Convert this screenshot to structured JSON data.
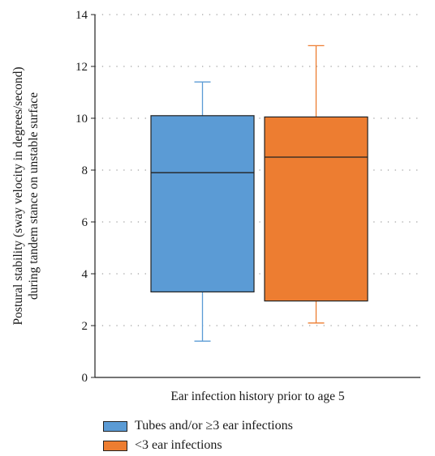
{
  "chart_data": {
    "type": "box",
    "ylabel_line1": "Postural stability (sway velocity in degrees/second)",
    "ylabel_line2": "during tandem stance on unstable surface",
    "xlabel": "Ear infection history prior to age 5",
    "ylim": [
      0,
      14
    ],
    "yticks": [
      "0",
      "2",
      "4",
      "6",
      "8",
      "10",
      "12",
      "14"
    ],
    "grid": "dotted horizontal",
    "legend_position": "bottom-left",
    "series": [
      {
        "name": "Tubes and/or ≥3 ear infections",
        "color": "#5b9bd5",
        "whisker_color": "#5b9bd5",
        "min": 1.4,
        "q1": 3.3,
        "median": 7.9,
        "q3": 10.1,
        "max": 11.4
      },
      {
        "name": "<3 ear infections",
        "color": "#ed7d31",
        "whisker_color": "#ed7d31",
        "min": 2.1,
        "q1": 2.95,
        "median": 8.5,
        "q3": 10.05,
        "max": 12.8
      }
    ]
  }
}
